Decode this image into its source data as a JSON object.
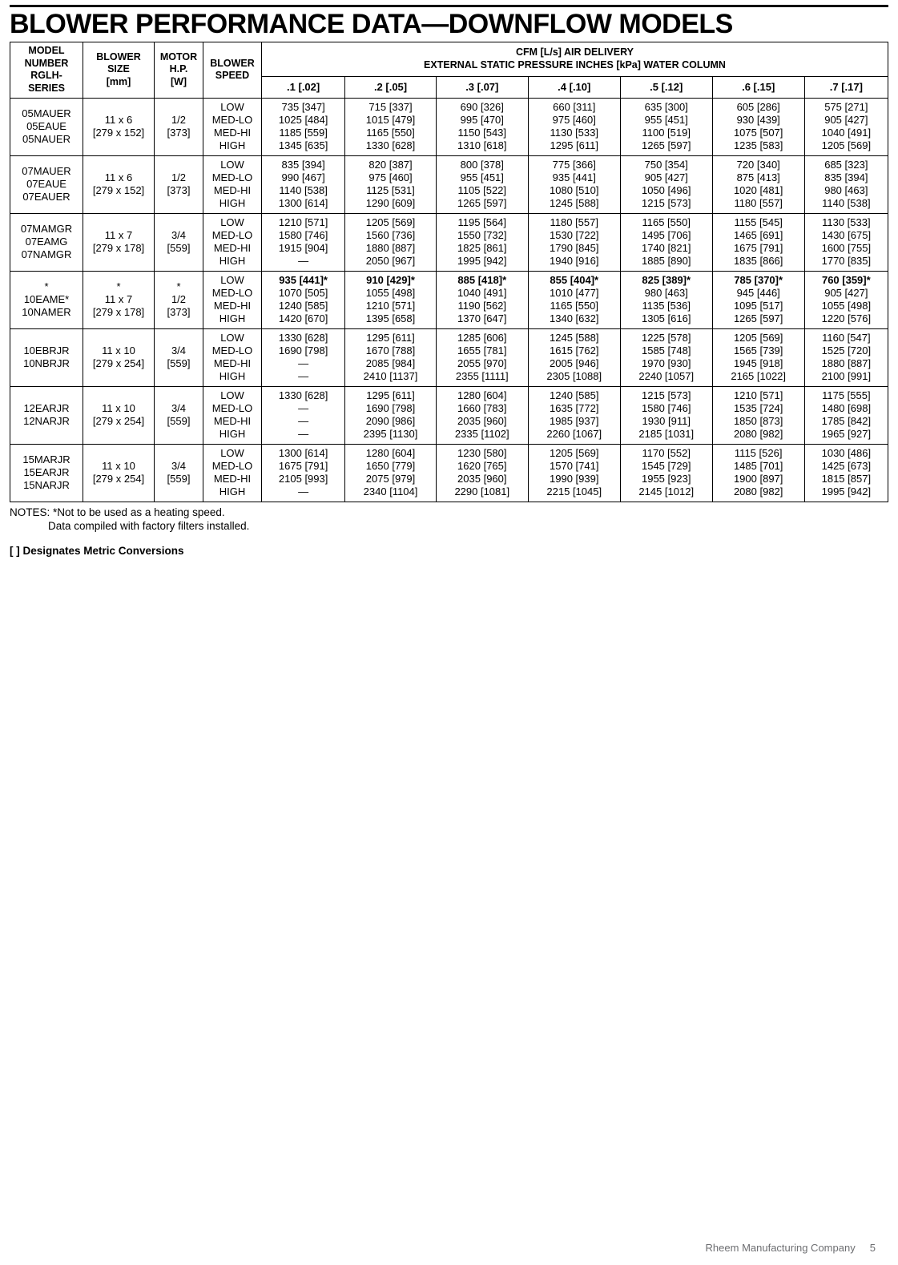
{
  "title": "BLOWER PERFORMANCE DATA—DOWNFLOW MODELS",
  "header": {
    "model": "MODEL\nNUMBER\nRGLH-\nSERIES",
    "model_top": "MODEL\nNUMBER\nRGLH-",
    "model_bot": "SERIES",
    "size_top": "BLOWER\nSIZE",
    "size_bot": "[mm]",
    "hp_top": "MOTOR\nH.P.",
    "hp_bot": "[W]",
    "speed": "BLOWER\nSPEED",
    "cfm_top": "CFM [L/s] AIR DELIVERY\nEXTERNAL STATIC PRESSURE INCHES [kPa] WATER COLUMN",
    "cols": [
      ".1 [.02]",
      ".2 [.05]",
      ".3 [.07]",
      ".4 [.10]",
      ".5 [.12]",
      ".6 [.15]",
      ".7 [.17]"
    ]
  },
  "rows": [
    {
      "model": "05MAUER\n05EAUE\n05NAUER",
      "size": "11 x 6\n[279 x 152]",
      "hp": "1/2\n[373]",
      "speed": "LOW\nMED-LO\nMED-HI\nHIGH",
      "c": [
        "735 [347]\n1025 [484]\n1185 [559]\n1345 [635]",
        "715   [337]\n1015   [479]\n1165   [550]\n1330   [628]",
        "690   [326]\n995   [470]\n1150   [543]\n1310   [618]",
        "660   [311]\n975   [460]\n1130   [533]\n1295   [611]",
        "635   [300]\n955   [451]\n1100   [519]\n1265   [597]",
        "605   [286]\n930   [439]\n1075   [507]\n1235   [583]",
        "575 [271]\n905 [427]\n1040 [491]\n1205 [569]"
      ]
    },
    {
      "model": "07MAUER\n07EAUE\n07EAUER",
      "size": "11 x 6\n[279 x 152]",
      "hp": "1/2\n[373]",
      "speed": "LOW\nMED-LO\nMED-HI\nHIGH",
      "c": [
        "835 [394]\n990 [467]\n1140 [538]\n1300 [614]",
        "820   [387]\n975   [460]\n1125   [531]\n1290   [609]",
        "800   [378]\n955   [451]\n1105   [522]\n1265   [597]",
        "775   [366]\n935   [441]\n1080   [510]\n1245   [588]",
        "750   [354]\n905   [427]\n1050   [496]\n1215   [573]",
        "720   [340]\n875   [413]\n1020   [481]\n1180   [557]",
        "685 [323]\n835 [394]\n980 [463]\n1140 [538]"
      ]
    },
    {
      "model": "07MAMGR\n07EAMG\n07NAMGR",
      "size": "11 x 7\n[279 x 178]",
      "hp": "3/4\n[559]",
      "speed": "LOW\nMED-LO\nMED-HI\nHIGH",
      "c": [
        "1210 [571]\n1580 [746]\n1915 [904]\n—",
        "1205   [569]\n1560   [736]\n1880   [887]\n2050   [967]",
        "1195   [564]\n1550   [732]\n1825   [861]\n1995   [942]",
        "1180   [557]\n1530   [722]\n1790   [845]\n1940   [916]",
        "1165   [550]\n1495   [706]\n1740   [821]\n1885   [890]",
        "1155   [545]\n1465   [691]\n1675   [791]\n1835   [866]",
        "1130 [533]\n1430 [675]\n1600 [755]\n1770 [835]"
      ]
    },
    {
      "star": true,
      "model": "*\n10EAME*\n10NAMER",
      "size": "*\n11 x 7\n[279 x 178]",
      "hp": "*\n1/2\n[373]",
      "speed": "LOW\nMED-LO\nMED-HI\nHIGH",
      "c": [
        "935 [441]*\n1070 [505]\n1240 [585]\n1420 [670]",
        "910   [429]*\n1055   [498]\n1210   [571]\n1395   [658]",
        "885   [418]*\n1040   [491]\n1190   [562]\n1370   [647]",
        "855   [404]*\n1010   [477]\n1165   [550]\n1340   [632]",
        "825   [389]*\n980   [463]\n1135   [536]\n1305   [616]",
        "785   [370]*\n945   [446]\n1095   [517]\n1265   [597]",
        "760 [359]*\n905 [427]\n1055 [498]\n1220 [576]"
      ]
    },
    {
      "model": "10EBRJR\n10NBRJR",
      "size": "11 x 10\n[279 x 254]",
      "hp": "3/4\n[559]",
      "speed": "LOW\nMED-LO\nMED-HI\nHIGH",
      "c": [
        "1330 [628]\n1690 [798]\n—\n—",
        "1295   [611]\n1670   [788]\n2085   [984]\n2410 [1137]",
        "1285   [606]\n1655   [781]\n2055   [970]\n2355 [1111]",
        "1245   [588]\n1615   [762]\n2005   [946]\n2305 [1088]",
        "1225   [578]\n1585   [748]\n1970   [930]\n2240 [1057]",
        "1205   [569]\n1565   [739]\n1945   [918]\n2165 [1022]",
        "1160 [547]\n1525 [720]\n1880 [887]\n2100 [991]"
      ]
    },
    {
      "model": "12EARJR\n12NARJR",
      "size": "11 x 10\n[279 x 254]",
      "hp": "3/4\n[559]",
      "speed": "LOW\nMED-LO\nMED-HI\nHIGH",
      "c": [
        "1330 [628]\n—\n—\n—",
        "1295   [611]\n1690   [798]\n2090   [986]\n2395 [1130]",
        "1280   [604]\n1660   [783]\n2035   [960]\n2335 [1102]",
        "1240   [585]\n1635   [772]\n1985   [937]\n2260 [1067]",
        "1215   [573]\n1580   [746]\n1930   [911]\n2185 [1031]",
        "1210   [571]\n1535   [724]\n1850   [873]\n2080   [982]",
        "1175 [555]\n1480 [698]\n1785 [842]\n1965 [927]"
      ]
    },
    {
      "model": "15MARJR\n15EARJR\n15NARJR",
      "size": "11 x 10\n[279 x 254]",
      "hp": "3/4\n[559]",
      "speed": "LOW\nMED-LO\nMED-HI\nHIGH",
      "c": [
        "1300 [614]\n1675 [791]\n2105 [993]\n—",
        "1280   [604]\n1650   [779]\n2075   [979]\n2340 [1104]",
        "1230   [580]\n1620   [765]\n2035   [960]\n2290 [1081]",
        "1205   [569]\n1570   [741]\n1990   [939]\n2215 [1045]",
        "1170   [552]\n1545   [729]\n1955   [923]\n2145 [1012]",
        "1115   [526]\n1485   [701]\n1900   [897]\n2080   [982]",
        "1030 [486]\n1425 [673]\n1815 [857]\n1995 [942]"
      ]
    }
  ],
  "notes": {
    "line1": "NOTES: *Not to be used as a heating speed.",
    "line2": "Data compiled with factory filters installed."
  },
  "metric_note": "[   ] Designates Metric Conversions",
  "footer": {
    "company": "Rheem Manufacturing Company",
    "page": "5"
  }
}
